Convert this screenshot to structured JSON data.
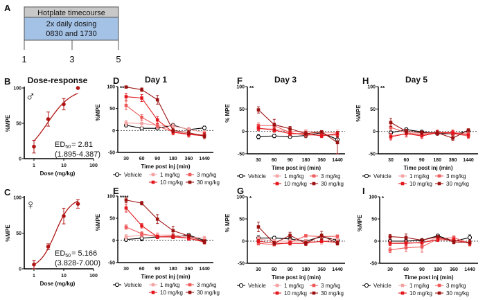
{
  "timeline": {
    "label": "A",
    "header": "Hotplate timecourse",
    "body_line1": "2x daily dosing",
    "body_line2": "0830 and 1730",
    "ticks": [
      "1",
      "3",
      "5"
    ],
    "header_color": "#c8c8c8",
    "body_color": "#a4c2e6"
  },
  "chart_data": [
    {
      "panel": "B",
      "type": "scatter",
      "title": "Dose-response",
      "symbol": "♂",
      "xlabel": "Dose  (mg/kg)",
      "ylabel": "%MPE",
      "x_scale": "log",
      "xticks": [
        "1",
        "10",
        "100"
      ],
      "yticks": [
        "0",
        "50",
        "100"
      ],
      "ylim": [
        0,
        100
      ],
      "color": "#b01515",
      "dose": [
        1,
        3,
        10,
        30
      ],
      "mean": [
        17,
        56,
        77,
        100
      ],
      "sem": [
        9,
        10,
        8,
        0
      ],
      "fit": {
        "ed50": 2.81,
        "hill": 1.06
      },
      "annotation": {
        "ed": "ED",
        "sub": "50",
        "eq": "= 2.81",
        "ci": "(1.895-4.387)"
      }
    },
    {
      "panel": "C",
      "type": "scatter",
      "title": "",
      "symbol": "♀",
      "xlabel": "Dose  (mg/kg)",
      "ylabel": "%MPE",
      "x_scale": "log",
      "xticks": [
        "1",
        "10",
        "100"
      ],
      "yticks": [
        "0",
        "50",
        "100"
      ],
      "ylim": [
        0,
        100
      ],
      "color": "#b01515",
      "dose": [
        1,
        3,
        10,
        30
      ],
      "mean": [
        6,
        31,
        74,
        91
      ],
      "sem": [
        6,
        4,
        11,
        6
      ],
      "fit": {
        "ed50": 5.166,
        "hill": 1.68
      },
      "annotation": {
        "ed": "ED",
        "sub": "50",
        "eq": "= 5.166",
        "ci": "(3.828-7.000)"
      }
    },
    {
      "panel": "D",
      "type": "line",
      "title": "Day 1",
      "significance": "****",
      "xlabel": "Time post inj  (min)",
      "ylabel": "%MPE",
      "categories": [
        "30",
        "60",
        "90",
        "180",
        "360",
        "1440"
      ],
      "yticks": [
        "-50",
        "0",
        "50",
        "100"
      ],
      "ylim": [
        -50,
        100
      ],
      "series": [
        {
          "name": "Vehicle",
          "color": "#000000",
          "open": true,
          "values": [
            12,
            5,
            5,
            12,
            2,
            6
          ],
          "sem": [
            4,
            3,
            3,
            4,
            3,
            4
          ]
        },
        {
          "name": "1 mg/kg",
          "color": "#f4a3a3",
          "values": [
            17,
            16,
            12,
            10,
            3,
            -5
          ],
          "sem": [
            6,
            7,
            5,
            5,
            4,
            5
          ]
        },
        {
          "name": "3 mg/kg",
          "color": "#ee5a5a",
          "values": [
            57,
            30,
            10,
            -3,
            -8,
            -10
          ],
          "sem": [
            10,
            6,
            5,
            6,
            5,
            6
          ]
        },
        {
          "name": "10 mg/kg",
          "color": "#e3161c",
          "values": [
            77,
            74,
            24,
            -4,
            -9,
            -12
          ],
          "sem": [
            8,
            8,
            8,
            6,
            6,
            7
          ]
        },
        {
          "name": "30 mg/kg",
          "color": "#9c1010",
          "values": [
            99,
            93,
            70,
            0,
            -5,
            -13
          ],
          "sem": [
            2,
            4,
            10,
            5,
            5,
            6
          ]
        }
      ]
    },
    {
      "panel": "E",
      "type": "line",
      "title": "",
      "significance": "****",
      "xlabel": "Time post inj  (min)",
      "ylabel": "%MPE",
      "categories": [
        "30",
        "60",
        "90",
        "180",
        "360",
        "1440"
      ],
      "yticks": [
        "-50",
        "0",
        "50",
        "100"
      ],
      "ylim": [
        -50,
        100
      ],
      "series": [
        {
          "name": "Vehicle",
          "color": "#000000",
          "open": true,
          "values": [
            2,
            5,
            8,
            8,
            12,
            0
          ],
          "sem": [
            4,
            6,
            3,
            4,
            3,
            3
          ]
        },
        {
          "name": "1 mg/kg",
          "color": "#f4a3a3",
          "values": [
            8,
            12,
            12,
            12,
            8,
            5
          ],
          "sem": [
            5,
            5,
            5,
            4,
            5,
            4
          ]
        },
        {
          "name": "3 mg/kg",
          "color": "#ee5a5a",
          "values": [
            30,
            15,
            8,
            10,
            5,
            -4
          ],
          "sem": [
            5,
            5,
            4,
            4,
            4,
            4
          ]
        },
        {
          "name": "10 mg/kg",
          "color": "#e3161c",
          "values": [
            73,
            33,
            8,
            8,
            5,
            -3
          ],
          "sem": [
            9,
            5,
            4,
            4,
            5,
            5
          ]
        },
        {
          "name": "30 mg/kg",
          "color": "#9c1010",
          "values": [
            91,
            84,
            48,
            22,
            10,
            -3
          ],
          "sem": [
            6,
            4,
            10,
            10,
            3,
            4
          ]
        }
      ]
    },
    {
      "panel": "F",
      "type": "line",
      "title": "Day 3",
      "significance": "**",
      "xlabel": "Time post inj  (min)",
      "ylabel": "% MPE",
      "categories": [
        "30",
        "60",
        "90",
        "180",
        "360",
        "1440"
      ],
      "yticks": [
        "-50",
        "0",
        "50",
        "100"
      ],
      "ylim": [
        -50,
        100
      ],
      "series": [
        {
          "name": "Vehicle",
          "color": "#000000",
          "open": true,
          "values": [
            -12,
            -10,
            -12,
            -9,
            -3,
            -18
          ],
          "sem": [
            5,
            4,
            3,
            5,
            3,
            6
          ]
        },
        {
          "name": "1 mg/kg",
          "color": "#f4a3a3",
          "values": [
            7,
            5,
            0,
            0,
            -3,
            -3
          ],
          "sem": [
            6,
            6,
            5,
            4,
            4,
            6
          ]
        },
        {
          "name": "3 mg/kg",
          "color": "#ee5a5a",
          "values": [
            13,
            13,
            -3,
            -8,
            -8,
            -8
          ],
          "sem": [
            6,
            6,
            5,
            5,
            4,
            5
          ]
        },
        {
          "name": "10 mg/kg",
          "color": "#e3161c",
          "values": [
            7,
            3,
            -5,
            -5,
            -10,
            -5
          ],
          "sem": [
            5,
            5,
            5,
            5,
            4,
            5
          ]
        },
        {
          "name": "30 mg/kg",
          "color": "#9c1010",
          "values": [
            48,
            15,
            6,
            -5,
            -1,
            -25
          ],
          "sem": [
            7,
            12,
            5,
            5,
            3,
            25
          ]
        }
      ]
    },
    {
      "panel": "G",
      "type": "line",
      "title": "",
      "significance": "*",
      "xlabel": "Time post inj  (min)",
      "ylabel": "% MPE",
      "categories": [
        "30",
        "60",
        "90",
        "180",
        "360",
        "1440"
      ],
      "yticks": [
        "-50",
        "0",
        "50",
        "100"
      ],
      "ylim": [
        -50,
        100
      ],
      "series": [
        {
          "name": "Vehicle",
          "color": "#000000",
          "open": true,
          "values": [
            7,
            7,
            5,
            0,
            10,
            2
          ],
          "sem": [
            5,
            4,
            4,
            4,
            5,
            4
          ]
        },
        {
          "name": "1 mg/kg",
          "color": "#f4a3a3",
          "values": [
            5,
            0,
            0,
            0,
            -2,
            8
          ],
          "sem": [
            5,
            4,
            5,
            4,
            5,
            4
          ]
        },
        {
          "name": "3 mg/kg",
          "color": "#ee5a5a",
          "values": [
            -5,
            -8,
            -3,
            12,
            10,
            11
          ],
          "sem": [
            4,
            3,
            4,
            3,
            4,
            3
          ]
        },
        {
          "name": "10 mg/kg",
          "color": "#e3161c",
          "values": [
            0,
            -5,
            -5,
            -5,
            0,
            -3
          ],
          "sem": [
            4,
            4,
            4,
            4,
            4,
            4
          ]
        },
        {
          "name": "30 mg/kg",
          "color": "#9c1010",
          "values": [
            32,
            -5,
            13,
            -5,
            13,
            -5
          ],
          "sem": [
            11,
            4,
            7,
            5,
            9,
            4
          ]
        }
      ]
    },
    {
      "panel": "H",
      "type": "line",
      "title": "Day 5",
      "significance": "**",
      "xlabel": "Time post inj  (min)",
      "ylabel": "%MPE",
      "categories": [
        "30",
        "60",
        "90",
        "180",
        "360",
        "1440"
      ],
      "yticks": [
        "-50",
        "0",
        "50",
        "100"
      ],
      "ylim": [
        -50,
        100
      ],
      "series": [
        {
          "name": "Vehicle",
          "color": "#000000",
          "open": true,
          "values": [
            -3,
            4,
            -1,
            -5,
            -5,
            0
          ],
          "sem": [
            4,
            4,
            3,
            3,
            4,
            3
          ]
        },
        {
          "name": "1 mg/kg",
          "color": "#f4a3a3",
          "values": [
            -10,
            -5,
            -5,
            -2,
            -2,
            -5
          ],
          "sem": [
            6,
            8,
            6,
            6,
            7,
            6
          ]
        },
        {
          "name": "3 mg/kg",
          "color": "#ee5a5a",
          "values": [
            9,
            -3,
            -8,
            -2,
            -5,
            -10
          ],
          "sem": [
            6,
            5,
            5,
            4,
            5,
            6
          ]
        },
        {
          "name": "10 mg/kg",
          "color": "#e3161c",
          "values": [
            -12,
            -5,
            -10,
            -3,
            -3,
            -8
          ],
          "sem": [
            7,
            6,
            6,
            5,
            5,
            6
          ]
        },
        {
          "name": "30 mg/kg",
          "color": "#9c1010",
          "values": [
            20,
            0,
            -3,
            -3,
            -15,
            3
          ],
          "sem": [
            9,
            5,
            4,
            4,
            5,
            3
          ]
        }
      ]
    },
    {
      "panel": "I",
      "type": "line",
      "title": "",
      "significance": "*",
      "xlabel": "Time post inj  (min)",
      "ylabel": "%MPE",
      "categories": [
        "30",
        "60",
        "90",
        "180",
        "360",
        "1440"
      ],
      "yticks": [
        "-50",
        "0",
        "50",
        "100"
      ],
      "ylim": [
        -50,
        100
      ],
      "series": [
        {
          "name": "Vehicle",
          "color": "#000000",
          "open": true,
          "values": [
            0,
            0,
            2,
            12,
            0,
            8
          ],
          "sem": [
            4,
            4,
            3,
            3,
            4,
            6
          ]
        },
        {
          "name": "1 mg/kg",
          "color": "#f4a3a3",
          "values": [
            -5,
            -3,
            -5,
            8,
            0,
            -3
          ],
          "sem": [
            5,
            5,
            5,
            4,
            5,
            5
          ]
        },
        {
          "name": "3 mg/kg",
          "color": "#ee5a5a",
          "values": [
            -20,
            -15,
            -13,
            5,
            8,
            -5
          ],
          "sem": [
            6,
            9,
            12,
            5,
            4,
            6
          ]
        },
        {
          "name": "10 mg/kg",
          "color": "#e3161c",
          "values": [
            -5,
            -5,
            -3,
            3,
            3,
            -5
          ],
          "sem": [
            5,
            5,
            5,
            4,
            4,
            5
          ]
        },
        {
          "name": "30 mg/kg",
          "color": "#9c1010",
          "values": [
            10,
            8,
            2,
            10,
            -2,
            -3
          ],
          "sem": [
            5,
            8,
            3,
            3,
            4,
            5
          ]
        }
      ]
    }
  ]
}
